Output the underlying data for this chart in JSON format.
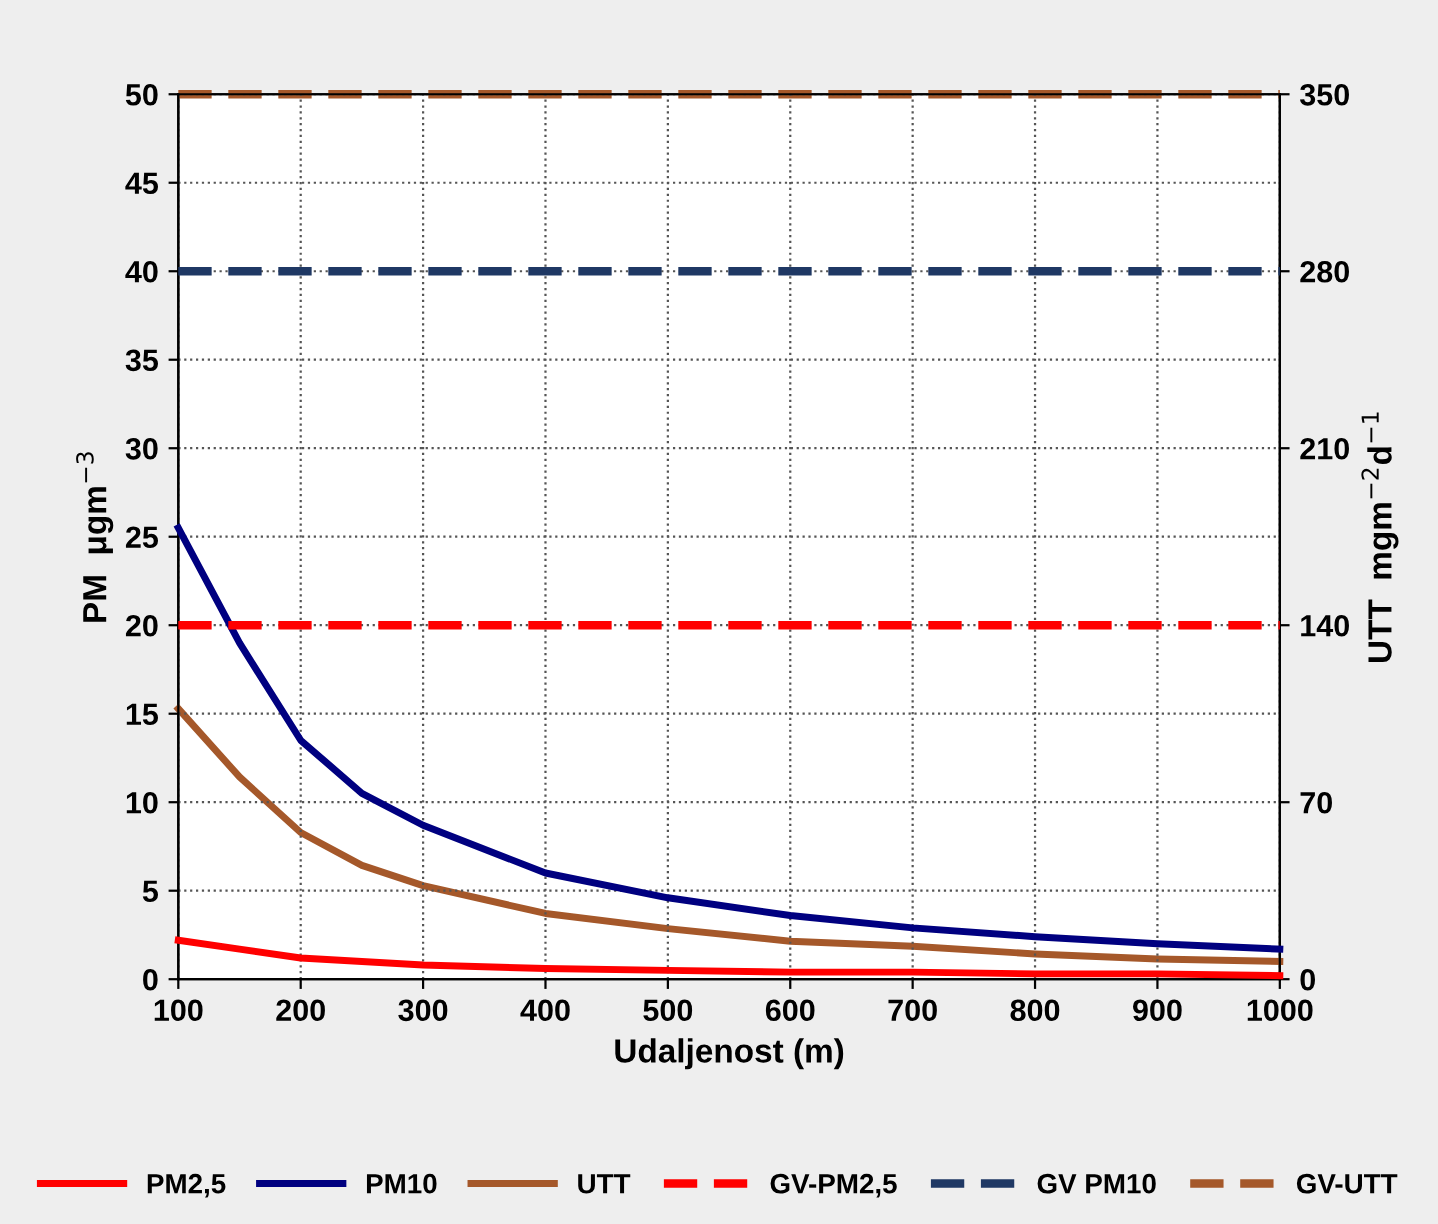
{
  "chart_data": {
    "type": "line",
    "xlabel": "Udaljenost (m)",
    "ylabel": "PM  μgm$^{−3}$",
    "y2label": "UTT  mgm$^{−2}$d$^{−1}$",
    "x": [
      100,
      150,
      200,
      250,
      300,
      400,
      500,
      600,
      700,
      800,
      900,
      1000
    ],
    "series": [
      {
        "name": "PM2,5",
        "color": "#ff0000",
        "values": [
          2.2,
          1.7,
          1.2,
          1.0,
          0.8,
          0.6,
          0.5,
          0.4,
          0.4,
          0.3,
          0.3,
          0.2
        ],
        "line_style": "solid"
      },
      {
        "name": "PM10",
        "color": "#000080",
        "values": [
          25.5,
          19,
          13.5,
          10.5,
          8.7,
          6.0,
          4.6,
          3.6,
          2.9,
          2.4,
          2.0,
          1.7
        ],
        "line_style": "solid"
      },
      {
        "name": "UTT",
        "color": "#a5582a",
        "axis": "y2",
        "values": [
          107,
          80,
          58,
          45,
          37,
          26,
          20,
          15,
          13,
          10,
          8,
          7
        ],
        "line_style": "solid"
      }
    ],
    "ref_lines": [
      {
        "axis": "y",
        "value": 20,
        "label": "GV-PM2,5",
        "color": "#ff0000",
        "line_style": "dashed"
      },
      {
        "axis": "y",
        "value": 40,
        "label": "GV PM10",
        "color": "#1f3864",
        "line_style": "dashed"
      },
      {
        "axis": "y2",
        "value": 350,
        "label": "GV-UTT",
        "color": "#a5582a",
        "line_style": "dashed"
      }
    ],
    "xlim": [
      100,
      1000
    ],
    "xticks": [
      100,
      200,
      300,
      400,
      500,
      600,
      700,
      800,
      900,
      1000
    ],
    "ylim": [
      0,
      50
    ],
    "yticks": [
      0,
      5,
      10,
      15,
      20,
      25,
      30,
      35,
      40,
      45,
      50
    ],
    "y2lim": [
      0,
      350
    ],
    "y2ticks": [
      0,
      70,
      140,
      210,
      280,
      350
    ],
    "grid": true,
    "legend": "bottom",
    "marker": "none"
  }
}
